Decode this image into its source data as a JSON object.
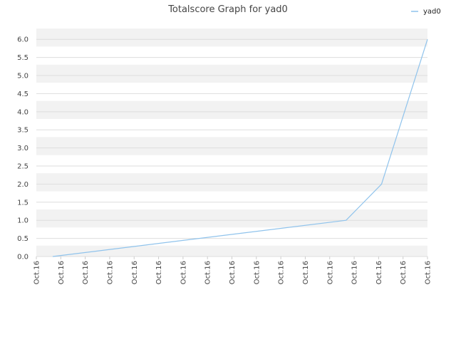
{
  "chart_data": {
    "type": "line",
    "title": "Totalscore Graph for yad0",
    "xlabel": "",
    "ylabel": "",
    "x": [
      "Oct.16",
      "Oct.16",
      "Oct.16",
      "Oct.16",
      "Oct.16",
      "Oct.16",
      "Oct.16",
      "Oct.16",
      "Oct.16",
      "Oct.16",
      "Oct.16",
      "Oct.16",
      "Oct.16",
      "Oct.16",
      "Oct.16",
      "Oct.16",
      "Oct.16"
    ],
    "ylim": [
      0,
      6.3
    ],
    "yticks": [
      "0.0",
      "0.5",
      "1.0",
      "1.5",
      "2.0",
      "2.5",
      "3.0",
      "3.5",
      "4.0",
      "4.5",
      "5.0",
      "5.5",
      "6.0"
    ],
    "series": [
      {
        "name": "yad0",
        "color": "#8fc3ec",
        "points": [
          {
            "x": 0.67,
            "y": 0.0
          },
          {
            "x": 12.67,
            "y": 1.0
          },
          {
            "x": 14.12,
            "y": 2.0
          },
          {
            "x": 16.0,
            "y": 6.0
          }
        ]
      }
    ],
    "legend": "top-right",
    "grid": true,
    "band_colors": [
      "#f2f2f2",
      "#ffffff"
    ],
    "grid_color": "#dddddd"
  }
}
